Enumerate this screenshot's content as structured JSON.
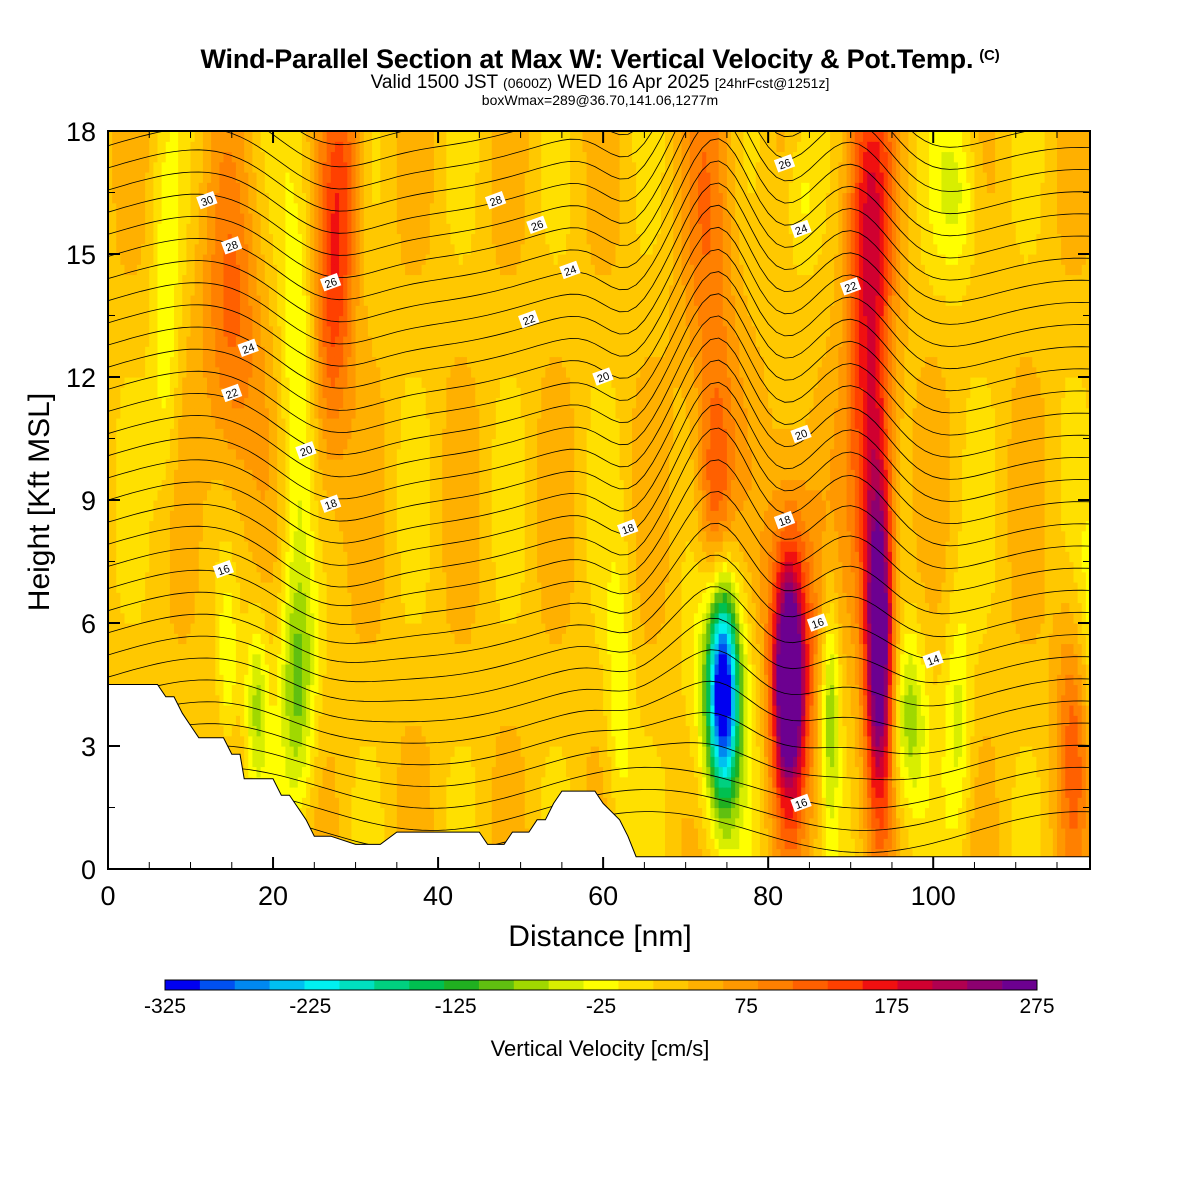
{
  "titles": {
    "main": "Wind-Parallel Section at Max W: Vertical Velocity & Pot.Temp.",
    "main_mark": "(C)",
    "valid_a": "Valid 1500 JST",
    "valid_b": "(0600Z)",
    "valid_c": "WED 16 Apr 2025",
    "valid_d": "[24hrFcst@1251z]",
    "box": "boxWmax=289@36.70,141.06,1277m"
  },
  "colorbar": {
    "title": "Vertical Velocity [cm/s]",
    "labels": [
      "-325",
      "-225",
      "-125",
      "-25",
      "75",
      "175",
      "275"
    ],
    "colors": [
      "#0000f0",
      "#0050f0",
      "#0088f0",
      "#00c0f0",
      "#00f0f0",
      "#00e0c0",
      "#00d080",
      "#00c050",
      "#20b020",
      "#60c010",
      "#a0d800",
      "#d8ee00",
      "#ffff00",
      "#ffe000",
      "#ffc800",
      "#ffb000",
      "#ff9800",
      "#ff8000",
      "#ff6000",
      "#ff4000",
      "#f01010",
      "#d00030",
      "#b00050",
      "#8c0070",
      "#6c0090"
    ]
  },
  "chart_data": {
    "type": "heatmap",
    "title": "Wind-Parallel Section at Max W: Vertical Velocity & Pot.Temp.",
    "xlabel": "Distance [nm]",
    "ylabel": "Height [Kft MSL]",
    "xlim": [
      0,
      119
    ],
    "ylim": [
      0,
      18
    ],
    "xticks": [
      0,
      20,
      40,
      60,
      80,
      100
    ],
    "yticks": [
      0,
      3,
      6,
      9,
      12,
      15,
      18
    ],
    "colorbar_label": "Vertical Velocity [cm/s]",
    "colorbar_range": [
      -325,
      275
    ],
    "wmax": 289,
    "features": [
      {
        "x": 27.5,
        "z_range": [
          9,
          18
        ],
        "w_peak": 140
      },
      {
        "x": 23,
        "z_range": [
          1,
          7
        ],
        "w_peak": -110
      },
      {
        "x": 74.5,
        "z_range": [
          1,
          7
        ],
        "w_peak": -260
      },
      {
        "x": 82.5,
        "z_range": [
          1,
          8
        ],
        "w_peak": 260
      },
      {
        "x": 93.5,
        "z_range": [
          1,
          10
        ],
        "w_peak": 289
      },
      {
        "x": 97,
        "z_range": [
          1,
          6
        ],
        "w_peak": -100
      }
    ],
    "contour_labels": [
      {
        "x": 12,
        "z": 16.3,
        "text": "30"
      },
      {
        "x": 15,
        "z": 15.2,
        "text": "28"
      },
      {
        "x": 17,
        "z": 12.7,
        "text": "24"
      },
      {
        "x": 15,
        "z": 11.6,
        "text": "22"
      },
      {
        "x": 24,
        "z": 10.2,
        "text": "20"
      },
      {
        "x": 27,
        "z": 8.9,
        "text": "18"
      },
      {
        "x": 14,
        "z": 7.3,
        "text": "16"
      },
      {
        "x": 27,
        "z": 14.3,
        "text": "26"
      },
      {
        "x": 47,
        "z": 16.3,
        "text": "28"
      },
      {
        "x": 52,
        "z": 15.7,
        "text": "26"
      },
      {
        "x": 56,
        "z": 14.6,
        "text": "24"
      },
      {
        "x": 51,
        "z": 13.4,
        "text": "22"
      },
      {
        "x": 60,
        "z": 12.0,
        "text": "20"
      },
      {
        "x": 63,
        "z": 8.3,
        "text": "18"
      },
      {
        "x": 82,
        "z": 17.2,
        "text": "26"
      },
      {
        "x": 84,
        "z": 15.6,
        "text": "24"
      },
      {
        "x": 90,
        "z": 14.2,
        "text": "22"
      },
      {
        "x": 84,
        "z": 10.6,
        "text": "20"
      },
      {
        "x": 82,
        "z": 8.5,
        "text": "18"
      },
      {
        "x": 86,
        "z": 6.0,
        "text": "16"
      },
      {
        "x": 84,
        "z": 1.6,
        "text": "16"
      },
      {
        "x": 100,
        "z": 5.1,
        "text": "14"
      }
    ],
    "terrain_kft": [
      [
        0,
        4.5
      ],
      [
        6,
        4.5
      ],
      [
        7,
        4.2
      ],
      [
        8,
        4.2
      ],
      [
        9,
        3.8
      ],
      [
        10,
        3.5
      ],
      [
        11,
        3.2
      ],
      [
        12,
        3.2
      ],
      [
        14,
        3.2
      ],
      [
        15,
        2.8
      ],
      [
        16,
        2.8
      ],
      [
        16.5,
        2.2
      ],
      [
        20,
        2.2
      ],
      [
        21,
        1.8
      ],
      [
        22,
        1.8
      ],
      [
        23,
        1.5
      ],
      [
        24,
        1.2
      ],
      [
        25,
        0.8
      ],
      [
        26,
        0.8
      ],
      [
        27,
        0.8
      ],
      [
        30,
        0.6
      ],
      [
        31,
        0.6
      ],
      [
        33,
        0.6
      ],
      [
        35,
        0.9
      ],
      [
        40,
        0.9
      ],
      [
        45,
        0.9
      ],
      [
        46,
        0.6
      ],
      [
        48,
        0.6
      ],
      [
        49,
        0.9
      ],
      [
        51,
        0.9
      ],
      [
        52,
        1.2
      ],
      [
        53,
        1.2
      ],
      [
        54,
        1.6
      ],
      [
        55,
        1.9
      ],
      [
        59,
        1.9
      ],
      [
        60,
        1.6
      ],
      [
        62,
        1.2
      ],
      [
        63,
        0.8
      ],
      [
        64,
        0.3
      ],
      [
        70,
        0.3
      ],
      [
        119,
        0.3
      ]
    ]
  }
}
